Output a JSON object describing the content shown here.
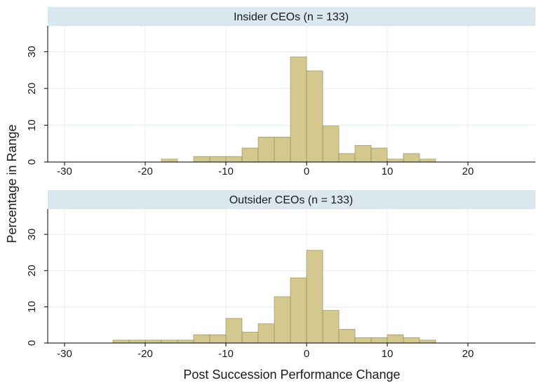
{
  "figure": {
    "ylabel": "Percentage in Range",
    "xlabel": "Post Succession Performance Change"
  },
  "colors": {
    "bar_fill": "#d3c98f",
    "bar_stroke": "#8f8557",
    "strip_fill": "#dbe7ee",
    "gridline": "#e8eef2"
  },
  "chart_data": [
    {
      "type": "bar",
      "title": "Insider CEOs (n = 133)",
      "bin_width": 2,
      "x": [
        -17,
        -13,
        -11,
        -9,
        -7,
        -5,
        -3,
        -1,
        1,
        3,
        5,
        7,
        9,
        11,
        13,
        15
      ],
      "values": [
        0.8,
        1.5,
        1.5,
        1.5,
        3.8,
        6.8,
        6.8,
        28.6,
        24.8,
        9.8,
        2.3,
        4.5,
        3.8,
        0.8,
        2.3,
        0.8
      ],
      "xlim": [
        -32,
        30
      ],
      "ylim": [
        0,
        37
      ],
      "xticks": [
        -30,
        -20,
        -10,
        0,
        10,
        20,
        30
      ],
      "yticks": [
        0,
        10,
        20,
        30
      ]
    },
    {
      "type": "bar",
      "title": "Outsider CEOs (n = 133)",
      "bin_width": 2,
      "x": [
        -23,
        -21,
        -19,
        -17,
        -15,
        -13,
        -11,
        -9,
        -7,
        -5,
        -3,
        -1,
        1,
        3,
        5,
        7,
        9,
        11,
        13,
        15
      ],
      "values": [
        0.8,
        0.8,
        0.8,
        0.8,
        0.8,
        2.3,
        2.3,
        6.8,
        3.0,
        5.3,
        12.8,
        18.0,
        25.6,
        9.0,
        3.8,
        1.5,
        1.5,
        2.3,
        1.5,
        0.8
      ],
      "xlim": [
        -32,
        30
      ],
      "ylim": [
        0,
        37
      ],
      "xticks": [
        -30,
        -20,
        -10,
        0,
        10,
        20,
        30
      ],
      "yticks": [
        0,
        10,
        20,
        30
      ]
    }
  ]
}
